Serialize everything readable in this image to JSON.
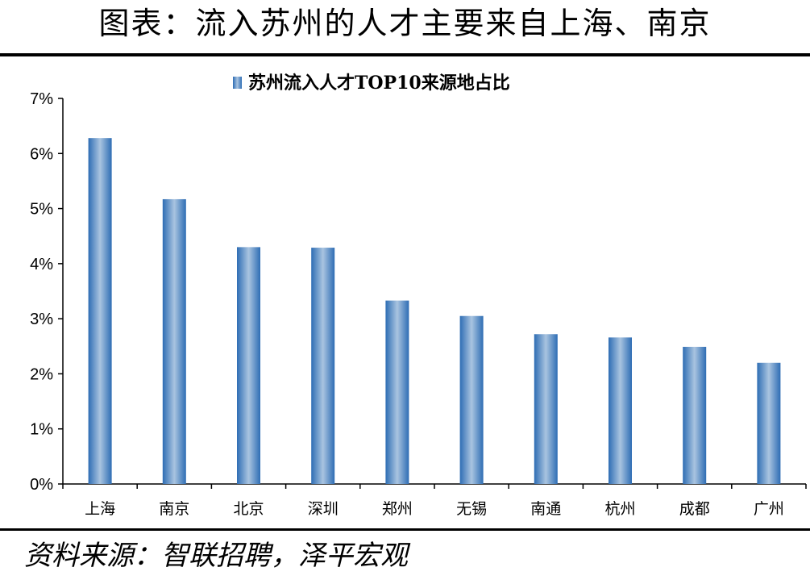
{
  "figure_title": "图表：流入苏州的人才主要来自上海、南京",
  "source_text": "资料来源：智联招聘，泽平宏观",
  "colors": {
    "bar_dark": "#2e6db4",
    "bar_light": "#a9c4e0",
    "axis": "#000000",
    "rule": "#000000"
  },
  "chart_data": {
    "type": "bar",
    "title": "",
    "xlabel": "",
    "ylabel": "",
    "legend_position": "top-center",
    "grid": false,
    "ylim": [
      0,
      7
    ],
    "y_ticks": [
      0,
      1,
      2,
      3,
      4,
      5,
      6,
      7
    ],
    "y_tick_labels": [
      "0%",
      "1%",
      "2%",
      "3%",
      "4%",
      "5%",
      "6%",
      "7%"
    ],
    "categories": [
      "上海",
      "南京",
      "北京",
      "深圳",
      "郑州",
      "无锡",
      "南通",
      "杭州",
      "成都",
      "广州"
    ],
    "series": [
      {
        "name": "苏州流入人才TOP10来源地占比",
        "values": [
          6.28,
          5.17,
          4.3,
          4.29,
          3.33,
          3.05,
          2.72,
          2.66,
          2.49,
          2.2
        ]
      }
    ]
  }
}
